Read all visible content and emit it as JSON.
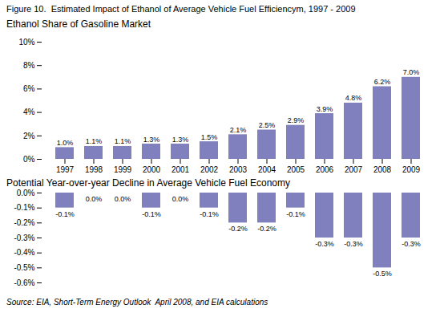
{
  "chart_data": [
    {
      "type": "bar",
      "title": "Figure 10.  Estimated Impact of Ethanol of Average Vehicle Fuel Efficiencym, 1997 - 2009",
      "subtitle": "Ethanol Share of Gasoline Market",
      "categories": [
        1997,
        1998,
        1999,
        2000,
        2001,
        2002,
        2003,
        2004,
        2005,
        2006,
        2007,
        2008,
        2009
      ],
      "values": [
        1.0,
        1.1,
        1.1,
        1.3,
        1.3,
        1.5,
        2.1,
        2.5,
        2.9,
        3.9,
        4.8,
        6.2,
        7.0
      ],
      "value_labels": [
        "1.0%",
        "1.1%",
        "1.1%",
        "1.3%",
        "1.3%",
        "1.5%",
        "2.1%",
        "2.5%",
        "2.9%",
        "3.9%",
        "4.8%",
        "6.2%",
        "7.0%"
      ],
      "data_labels": true,
      "color": "#8080bf",
      "ylim": [
        0,
        10
      ],
      "yticks": [
        {
          "value": 0,
          "label": "0%"
        },
        {
          "value": 2,
          "label": "2%"
        },
        {
          "value": 4,
          "label": "4%"
        },
        {
          "value": 6,
          "label": "6%"
        },
        {
          "value": 8,
          "label": "8%"
        },
        {
          "value": 10,
          "label": "10%"
        }
      ],
      "grid": false
    },
    {
      "type": "bar",
      "subtitle": "Potential Year-over-year Decline in Average Vehicle Fuel Economy",
      "categories": [
        1997,
        1998,
        1999,
        2000,
        2001,
        2002,
        2003,
        2004,
        2005,
        2006,
        2007,
        2008,
        2009
      ],
      "values": [
        -0.1,
        0.0,
        0.0,
        -0.1,
        0.0,
        -0.1,
        -0.2,
        -0.2,
        -0.1,
        -0.3,
        -0.3,
        -0.5,
        -0.3
      ],
      "value_labels": [
        "-0.1%",
        "0.0%",
        "0.0%",
        "-0.1%",
        "0.0%",
        "-0.1%",
        "-0.2%",
        "-0.2%",
        "-0.1%",
        "-0.3%",
        "-0.3%",
        "-0.5%",
        "-0.3%"
      ],
      "data_labels": true,
      "color": "#8080bf",
      "ylim": [
        -0.6,
        0.0
      ],
      "yticks": [
        {
          "value": -0.6,
          "label": "-0.6%"
        },
        {
          "value": -0.5,
          "label": "-0.5%"
        },
        {
          "value": -0.4,
          "label": "-0.4%"
        },
        {
          "value": -0.3,
          "label": "-0.3%"
        },
        {
          "value": -0.2,
          "label": "-0.2%"
        },
        {
          "value": -0.1,
          "label": "-0.1%"
        },
        {
          "value": 0,
          "label": "0.0%"
        }
      ],
      "tick_labels": "y",
      "grid": false,
      "annotations": [
        "Source: EIA, Short-Term Energy Outlook  April 2008, and EIA calculations"
      ]
    }
  ]
}
